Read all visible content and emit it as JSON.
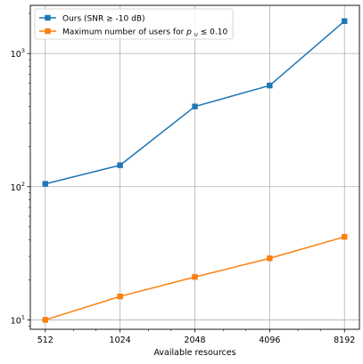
{
  "chart_data": {
    "type": "line",
    "title": "",
    "xlabel": "Available resources",
    "ylabel": "",
    "x": [
      512,
      1024,
      2048,
      4096,
      8192
    ],
    "x_tick_labels": [
      "512",
      "1024",
      "2048",
      "4096",
      "8192"
    ],
    "x_scale": "log2",
    "y_scale": "log10",
    "ylim": [
      8.5,
      2300
    ],
    "y_tick_labels": [
      {
        "base": "10",
        "exp": "1",
        "value": 10
      },
      {
        "base": "10",
        "exp": "2",
        "value": 100
      },
      {
        "base": "10",
        "exp": "3",
        "value": 1000
      }
    ],
    "grid": true,
    "legend_position": "top-left",
    "series": [
      {
        "name_parts": [
          "Ours (SNR",
          "≥",
          " -10 dB)"
        ],
        "color": "#1f77b4",
        "marker": "square",
        "values": [
          105,
          145,
          400,
          575,
          1750
        ]
      },
      {
        "name_parts": [
          "Maximum number of users for ",
          "p",
          "u",
          " ≤ 0.10"
        ],
        "color": "#ff7f0e",
        "marker": "square",
        "values": [
          10,
          15,
          21,
          29,
          42
        ]
      }
    ]
  }
}
